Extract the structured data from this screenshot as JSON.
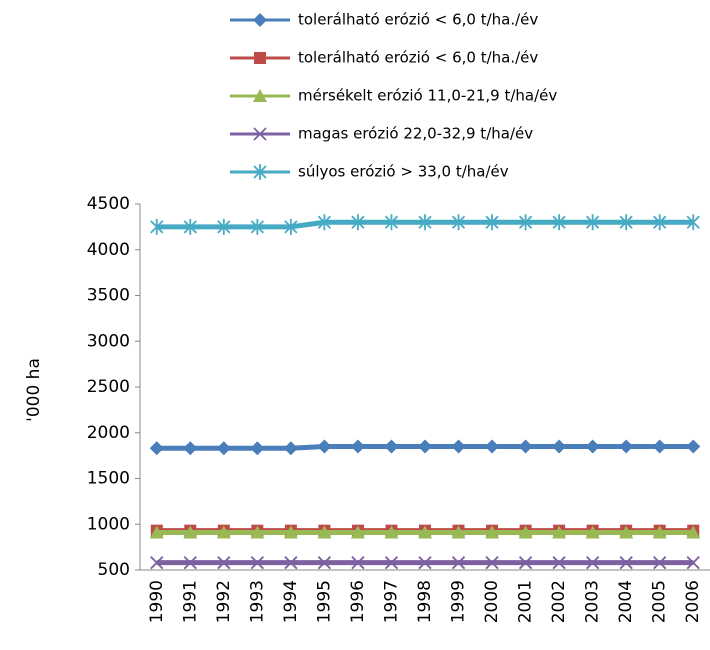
{
  "chart_data": {
    "type": "line",
    "y_label": "'000 ha",
    "categories": [
      "1990",
      "1991",
      "1992",
      "1993",
      "1994",
      "1995",
      "1996",
      "1997",
      "1998",
      "1999",
      "2000",
      "2001",
      "2002",
      "2003",
      "2004",
      "2005",
      "2006"
    ],
    "series": [
      {
        "name": "tolerálható erózió < 6,0 t/ha./év",
        "color": "#4a7ebb",
        "marker": "diamond",
        "values": [
          1830,
          1830,
          1830,
          1830,
          1830,
          1850,
          1850,
          1850,
          1850,
          1850,
          1850,
          1850,
          1850,
          1850,
          1850,
          1850,
          1850
        ]
      },
      {
        "name": "tolerálható erózió < 6,0 t/ha./év",
        "color": "#be4b48",
        "marker": "square",
        "values": [
          930,
          930,
          930,
          930,
          930,
          930,
          930,
          930,
          930,
          930,
          930,
          930,
          930,
          930,
          930,
          930,
          930
        ]
      },
      {
        "name": "mérsékelt erózió 11,0-21,9 t/ha/év",
        "color": "#98b954",
        "marker": "triangle",
        "values": [
          910,
          910,
          910,
          910,
          910,
          910,
          910,
          910,
          910,
          910,
          910,
          910,
          910,
          910,
          910,
          910,
          910
        ]
      },
      {
        "name": "magas erózió 22,0-32,9 t/ha/év",
        "color": "#7d60a0",
        "marker": "x",
        "values": [
          580,
          580,
          580,
          580,
          580,
          580,
          580,
          580,
          580,
          580,
          580,
          580,
          580,
          580,
          580,
          580,
          580
        ]
      },
      {
        "name": "súlyos erózió > 33,0 t/ha/év",
        "color": "#46aac5",
        "marker": "star",
        "values": [
          4250,
          4250,
          4250,
          4250,
          4250,
          4300,
          4300,
          4300,
          4300,
          4300,
          4300,
          4300,
          4300,
          4300,
          4300,
          4300,
          4300
        ]
      }
    ],
    "ylim": [
      500,
      4500
    ],
    "yticks": [
      500,
      1000,
      1500,
      2000,
      2500,
      3000,
      3500,
      4000,
      4500
    ]
  }
}
